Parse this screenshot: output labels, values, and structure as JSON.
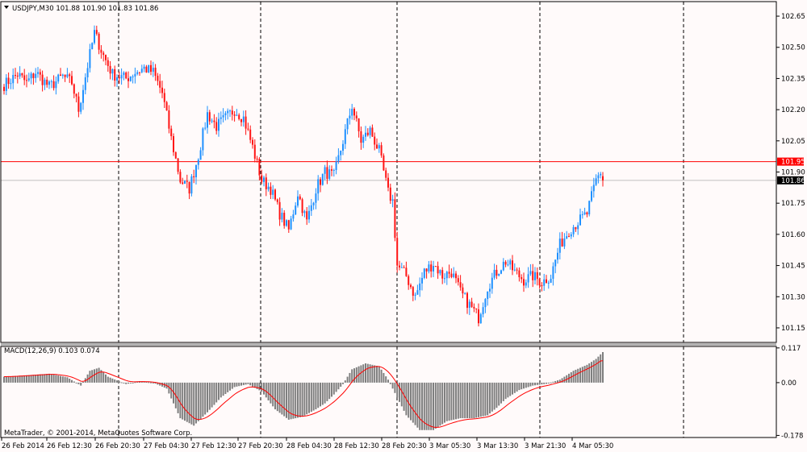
{
  "window": {
    "header_text": "USDJPY,M30  101.88 101.90 101.83 101.86",
    "copyright": "MetaTrader, © 2001-2014, MetaQuotes Software Corp."
  },
  "colors": {
    "background": "#fffafa",
    "bull": "#1e90ff",
    "bear": "#ff1414",
    "macd_hist": "#7f7f7f",
    "signal": "#ff0000",
    "ask_line": "#ff0000",
    "bid_line": "#c0c0c0",
    "frame": "#000000"
  },
  "chart_data": [
    {
      "type": "candlestick",
      "symbol": "USDJPY",
      "timeframe": "M30",
      "ohlc_last": {
        "open": 101.88,
        "high": 101.9,
        "low": 101.83,
        "close": 101.86
      },
      "ylim": [
        101.08,
        102.72
      ],
      "y_ticks": [
        "102.65",
        "102.50",
        "102.35",
        "102.20",
        "102.05",
        "101.90",
        "101.75",
        "101.60",
        "101.45",
        "101.30",
        "101.15"
      ],
      "ask_price": "101.95",
      "bid_price": "101.86",
      "grid": "vertical-dashed-session-separators",
      "x_ticks": [
        "26 Feb 2014",
        "26 Feb 12:30",
        "26 Feb 20:30",
        "27 Feb 04:30",
        "27 Feb 12:30",
        "27 Feb 20:30",
        "28 Feb 04:30",
        "28 Feb 12:30",
        "28 Feb 20:30",
        "3 Mar 05:30",
        "3 Mar 13:30",
        "3 Mar 21:30",
        "4 Mar 05:30"
      ],
      "anchors": [
        [
          0,
          102.32
        ],
        [
          6,
          102.37
        ],
        [
          10,
          102.33
        ],
        [
          14,
          102.38
        ],
        [
          20,
          102.31
        ],
        [
          26,
          102.36
        ],
        [
          30,
          102.33
        ],
        [
          33,
          102.2
        ],
        [
          36,
          102.36
        ],
        [
          40,
          102.57
        ],
        [
          44,
          102.46
        ],
        [
          48,
          102.37
        ],
        [
          54,
          102.35
        ],
        [
          58,
          102.38
        ],
        [
          62,
          102.4
        ],
        [
          66,
          102.38
        ],
        [
          70,
          102.28
        ],
        [
          74,
          102.06
        ],
        [
          78,
          101.86
        ],
        [
          82,
          101.82
        ],
        [
          86,
          101.98
        ],
        [
          90,
          102.18
        ],
        [
          94,
          102.12
        ],
        [
          98,
          102.16
        ],
        [
          102,
          102.2
        ],
        [
          106,
          102.16
        ],
        [
          110,
          102.02
        ],
        [
          114,
          101.86
        ],
        [
          118,
          101.82
        ],
        [
          122,
          101.7
        ],
        [
          126,
          101.62
        ],
        [
          130,
          101.8
        ],
        [
          134,
          101.66
        ],
        [
          138,
          101.82
        ],
        [
          142,
          101.9
        ],
        [
          146,
          101.88
        ],
        [
          150,
          102.05
        ],
        [
          154,
          102.22
        ],
        [
          158,
          102.05
        ],
        [
          162,
          102.1
        ],
        [
          166,
          102.0
        ],
        [
          170,
          101.8
        ],
        [
          172,
          101.76
        ],
        [
          174,
          101.45
        ],
        [
          178,
          101.4
        ],
        [
          182,
          101.3
        ],
        [
          186,
          101.42
        ],
        [
          190,
          101.46
        ],
        [
          194,
          101.4
        ],
        [
          198,
          101.42
        ],
        [
          202,
          101.32
        ],
        [
          206,
          101.26
        ],
        [
          210,
          101.2
        ],
        [
          214,
          101.35
        ],
        [
          218,
          101.42
        ],
        [
          222,
          101.47
        ],
        [
          226,
          101.42
        ],
        [
          230,
          101.38
        ],
        [
          234,
          101.4
        ],
        [
          238,
          101.37
        ],
        [
          242,
          101.4
        ],
        [
          246,
          101.55
        ],
        [
          250,
          101.62
        ],
        [
          254,
          101.66
        ],
        [
          258,
          101.7
        ],
        [
          262,
          101.86
        ],
        [
          264,
          101.9
        ],
        [
          265,
          101.86
        ]
      ]
    },
    {
      "type": "macd",
      "title": "MACD(12,26,9) 0.103 0.074",
      "params": [
        12,
        26,
        9
      ],
      "main_last": 0.103,
      "signal_last": 0.074,
      "ylim": [
        -0.185,
        0.122
      ],
      "y_ticks": [
        "0.117",
        "0.00",
        "-0.178"
      ],
      "anchors": [
        [
          0,
          0.02
        ],
        [
          10,
          0.025
        ],
        [
          20,
          0.03
        ],
        [
          28,
          0.018
        ],
        [
          34,
          -0.01
        ],
        [
          38,
          0.04
        ],
        [
          42,
          0.05
        ],
        [
          46,
          0.02
        ],
        [
          54,
          -0.005
        ],
        [
          60,
          0.005
        ],
        [
          66,
          0.0
        ],
        [
          72,
          -0.02
        ],
        [
          78,
          -0.12
        ],
        [
          84,
          -0.145
        ],
        [
          90,
          -0.1
        ],
        [
          96,
          -0.05
        ],
        [
          102,
          -0.015
        ],
        [
          108,
          -0.005
        ],
        [
          114,
          -0.03
        ],
        [
          120,
          -0.09
        ],
        [
          126,
          -0.125
        ],
        [
          132,
          -0.115
        ],
        [
          138,
          -0.09
        ],
        [
          142,
          -0.07
        ],
        [
          146,
          -0.04
        ],
        [
          150,
          -0.005
        ],
        [
          154,
          0.045
        ],
        [
          160,
          0.065
        ],
        [
          166,
          0.055
        ],
        [
          170,
          0.01
        ],
        [
          174,
          -0.05
        ],
        [
          178,
          -0.11
        ],
        [
          184,
          -0.16
        ],
        [
          190,
          -0.16
        ],
        [
          196,
          -0.13
        ],
        [
          202,
          -0.12
        ],
        [
          208,
          -0.12
        ],
        [
          214,
          -0.11
        ],
        [
          218,
          -0.085
        ],
        [
          222,
          -0.055
        ],
        [
          228,
          -0.025
        ],
        [
          234,
          -0.01
        ],
        [
          240,
          -0.004
        ],
        [
          246,
          0.01
        ],
        [
          252,
          0.04
        ],
        [
          258,
          0.06
        ],
        [
          262,
          0.08
        ],
        [
          265,
          0.103
        ]
      ]
    }
  ]
}
